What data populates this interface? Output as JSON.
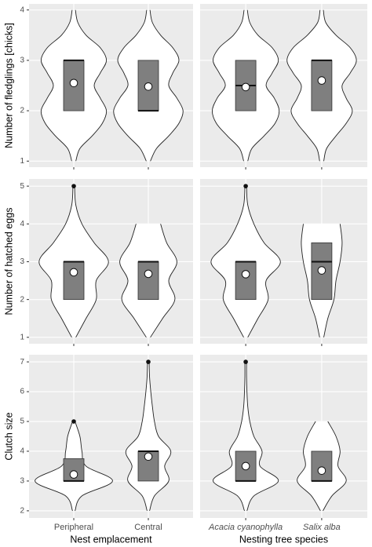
{
  "chart_data": {
    "type": "violin",
    "columns": [
      {
        "xlabel": "Nest emplacement",
        "categories": [
          "Peripheral",
          "Central"
        ]
      },
      {
        "xlabel": "Nesting tree species",
        "categories": [
          "Acacia cyanophylla",
          "Salix alba"
        ]
      }
    ],
    "rows": [
      {
        "ylabel": "Number of fledglings [chicks]",
        "ylim": [
          0.88,
          4.12
        ],
        "yticks": [
          1,
          2,
          3,
          4
        ],
        "panels": [
          {
            "groups": [
              {
                "q1": 2,
                "median": 3,
                "q3": 3,
                "mean": 2.55,
                "outliers": [],
                "violin_y": [
                  1,
                  1.25,
                  1.5,
                  1.75,
                  2,
                  2.25,
                  2.5,
                  2.75,
                  3,
                  3.25,
                  3.5,
                  3.75,
                  4
                ],
                "violin_width": [
                  0.05,
                  0.15,
                  0.45,
                  0.7,
                  0.8,
                  0.65,
                  0.5,
                  0.65,
                  0.8,
                  0.65,
                  0.3,
                  0.1,
                  0.04
                ]
              },
              {
                "q1": 2,
                "median": 2,
                "q3": 3,
                "mean": 2.48,
                "outliers": [],
                "violin_y": [
                  1,
                  1.25,
                  1.5,
                  1.75,
                  2,
                  2.25,
                  2.5,
                  2.75,
                  3,
                  3.25,
                  3.5,
                  3.75,
                  4
                ],
                "violin_width": [
                  0.05,
                  0.2,
                  0.5,
                  0.75,
                  0.85,
                  0.7,
                  0.5,
                  0.6,
                  0.75,
                  0.6,
                  0.3,
                  0.1,
                  0.04
                ]
              }
            ]
          },
          {
            "groups": [
              {
                "q1": 2,
                "median": 2.5,
                "q3": 3,
                "mean": 2.47,
                "outliers": [],
                "violin_y": [
                  1,
                  1.25,
                  1.5,
                  1.75,
                  2,
                  2.25,
                  2.5,
                  2.75,
                  3,
                  3.25,
                  3.5,
                  3.75,
                  4
                ],
                "violin_width": [
                  0.05,
                  0.15,
                  0.45,
                  0.72,
                  0.82,
                  0.7,
                  0.5,
                  0.65,
                  0.8,
                  0.65,
                  0.3,
                  0.1,
                  0.04
                ]
              },
              {
                "q1": 2,
                "median": 3,
                "q3": 3,
                "mean": 2.6,
                "outliers": [],
                "violin_y": [
                  1,
                  1.25,
                  1.5,
                  1.75,
                  2,
                  2.25,
                  2.5,
                  2.75,
                  3,
                  3.25,
                  3.5,
                  3.75,
                  4
                ],
                "violin_width": [
                  0.05,
                  0.12,
                  0.35,
                  0.6,
                  0.75,
                  0.6,
                  0.5,
                  0.7,
                  0.85,
                  0.7,
                  0.35,
                  0.1,
                  0.04
                ]
              }
            ]
          }
        ]
      },
      {
        "ylabel": "Number of hatched eggs",
        "ylim": [
          0.83,
          5.19
        ],
        "yticks": [
          1,
          2,
          3,
          4,
          5
        ],
        "panels": [
          {
            "groups": [
              {
                "q1": 2,
                "median": 3,
                "q3": 3,
                "mean": 2.72,
                "outliers": [
                  5
                ],
                "violin_y": [
                  1,
                  1.5,
                  2,
                  2.5,
                  3,
                  3.5,
                  4,
                  4.5,
                  5
                ],
                "violin_width": [
                  0.05,
                  0.3,
                  0.55,
                  0.55,
                  0.85,
                  0.5,
                  0.2,
                  0.05,
                  0.02
                ]
              },
              {
                "q1": 2,
                "median": 3,
                "q3": 3,
                "mean": 2.68,
                "outliers": [],
                "violin_y": [
                  1,
                  1.5,
                  2,
                  2.5,
                  3,
                  3.5,
                  4
                ],
                "violin_width": [
                  0.05,
                  0.35,
                  0.65,
                  0.5,
                  0.7,
                  0.45,
                  0.3
                ]
              }
            ]
          },
          {
            "groups": [
              {
                "q1": 2,
                "median": 3,
                "q3": 3,
                "mean": 2.67,
                "outliers": [
                  5
                ],
                "violin_y": [
                  1,
                  1.5,
                  2,
                  2.5,
                  3,
                  3.5,
                  4,
                  4.5,
                  5
                ],
                "violin_width": [
                  0.05,
                  0.3,
                  0.55,
                  0.5,
                  0.85,
                  0.45,
                  0.2,
                  0.05,
                  0.02
                ]
              },
              {
                "q1": 2,
                "median": 3,
                "q3": 3.5,
                "mean": 2.77,
                "outliers": [],
                "violin_y": [
                  1,
                  1.5,
                  2,
                  2.5,
                  3,
                  3.5,
                  4
                ],
                "violin_width": [
                  0.05,
                  0.15,
                  0.3,
                  0.35,
                  0.45,
                  0.5,
                  0.45
                ]
              }
            ]
          }
        ]
      },
      {
        "ylabel": "Clutch size",
        "ylim": [
          1.76,
          7.24
        ],
        "yticks": [
          2,
          3,
          4,
          5,
          6,
          7
        ],
        "panels": [
          {
            "groups": [
              {
                "q1": 3,
                "median": 3,
                "q3": 3.75,
                "mean": 3.22,
                "outliers": [
                  5
                ],
                "violin_y": [
                  2,
                  2.5,
                  3,
                  3.5,
                  4,
                  4.5,
                  5
                ],
                "violin_width": [
                  0.03,
                  0.2,
                  0.95,
                  0.3,
                  0.2,
                  0.15,
                  0.03
                ]
              },
              {
                "q1": 3,
                "median": 4,
                "q3": 4,
                "mean": 3.82,
                "outliers": [
                  7
                ],
                "violin_y": [
                  2,
                  2.5,
                  3,
                  3.5,
                  4,
                  4.5,
                  5,
                  5.5,
                  6,
                  6.5,
                  7
                ],
                "violin_width": [
                  0.03,
                  0.15,
                  0.5,
                  0.4,
                  0.55,
                  0.25,
                  0.15,
                  0.1,
                  0.06,
                  0.03,
                  0.02
                ]
              }
            ]
          },
          {
            "groups": [
              {
                "q1": 3,
                "median": 3,
                "q3": 4,
                "mean": 3.5,
                "outliers": [
                  7
                ],
                "violin_y": [
                  2,
                  2.5,
                  3,
                  3.5,
                  4,
                  4.5,
                  5,
                  5.5,
                  6,
                  6.5,
                  7
                ],
                "violin_width": [
                  0.03,
                  0.2,
                  0.8,
                  0.35,
                  0.4,
                  0.2,
                  0.1,
                  0.05,
                  0.03,
                  0.02,
                  0.02
                ]
              },
              {
                "q1": 3,
                "median": 3,
                "q3": 4,
                "mean": 3.35,
                "outliers": [],
                "violin_y": [
                  2,
                  2.5,
                  3,
                  3.5,
                  4,
                  4.5,
                  5
                ],
                "violin_width": [
                  0.03,
                  0.25,
                  0.6,
                  0.4,
                  0.45,
                  0.35,
                  0.15
                ]
              }
            ]
          }
        ]
      }
    ]
  }
}
